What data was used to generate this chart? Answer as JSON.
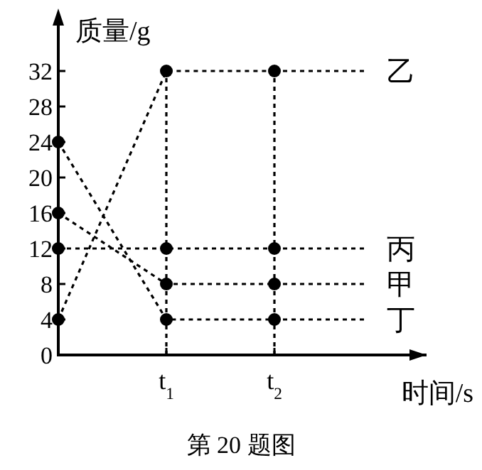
{
  "chart_data": {
    "type": "line",
    "title": "第 20 题图",
    "xlabel": "时间/s",
    "ylabel": "质量/g",
    "ylim": [
      0,
      32
    ],
    "yticks": [
      0,
      4,
      8,
      12,
      16,
      20,
      24,
      28,
      32
    ],
    "categories": [
      null,
      "t$_{1}$",
      "t$_{2}$"
    ],
    "series": [
      {
        "name": "乙",
        "color": "#000000",
        "values": [
          4,
          32,
          32
        ]
      },
      {
        "name": "丙",
        "color": "#000000",
        "values": [
          12,
          12,
          12
        ]
      },
      {
        "name": "甲",
        "color": "#000000",
        "values": [
          16,
          8,
          8
        ]
      },
      {
        "name": "丁",
        "color": "#000000",
        "values": [
          24,
          4,
          4
        ]
      }
    ],
    "ref_lines": [
      {
        "axis": "x",
        "value": "t$_{1}$",
        "label": null,
        "line_style": "dotted",
        "color": "#000000"
      },
      {
        "axis": "x",
        "value": "t$_{2}$",
        "label": null,
        "line_style": "dotted",
        "color": "#000000"
      }
    ],
    "marker": "circle",
    "line_style": "dotted",
    "grid": false,
    "legend": "right"
  }
}
